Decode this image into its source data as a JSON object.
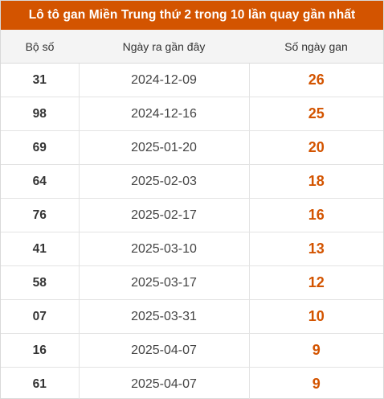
{
  "title": "Lô tô gan Miền Trung thứ 2 trong 10 lần quay gần nhất",
  "columns": {
    "number": "Bộ số",
    "last_date": "Ngày ra gần đây",
    "gan_days": "Số ngày gan"
  },
  "accent_color": "#d35400",
  "rows": [
    {
      "number": "31",
      "last_date": "2024-12-09",
      "gan_days": "26"
    },
    {
      "number": "98",
      "last_date": "2024-12-16",
      "gan_days": "25"
    },
    {
      "number": "69",
      "last_date": "2025-01-20",
      "gan_days": "20"
    },
    {
      "number": "64",
      "last_date": "2025-02-03",
      "gan_days": "18"
    },
    {
      "number": "76",
      "last_date": "2025-02-17",
      "gan_days": "16"
    },
    {
      "number": "41",
      "last_date": "2025-03-10",
      "gan_days": "13"
    },
    {
      "number": "58",
      "last_date": "2025-03-17",
      "gan_days": "12"
    },
    {
      "number": "07",
      "last_date": "2025-03-31",
      "gan_days": "10"
    },
    {
      "number": "16",
      "last_date": "2025-04-07",
      "gan_days": "9"
    },
    {
      "number": "61",
      "last_date": "2025-04-07",
      "gan_days": "9"
    }
  ]
}
